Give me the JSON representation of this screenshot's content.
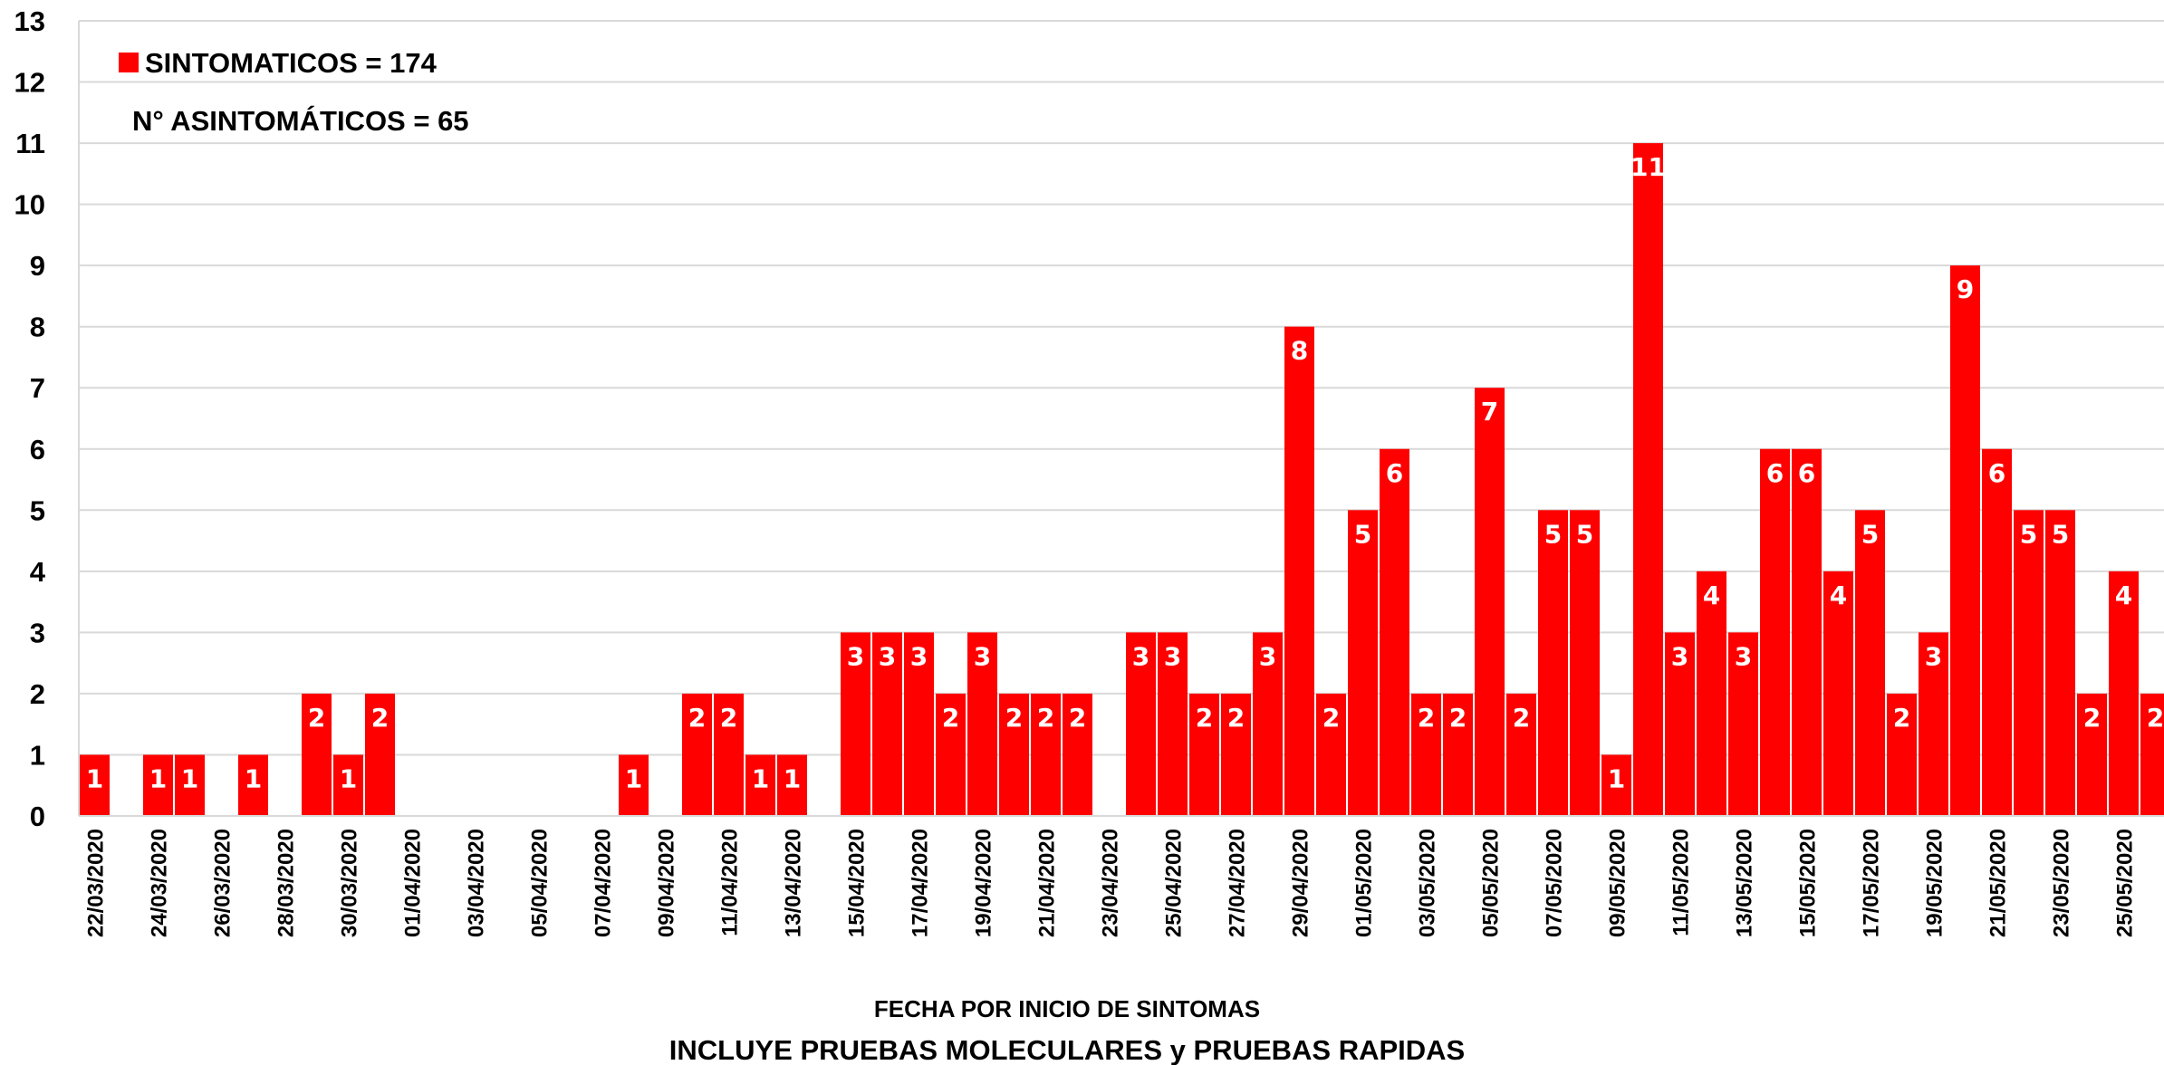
{
  "chart_data": {
    "type": "bar",
    "categories": [
      "22/03/2020",
      "23/03/2020",
      "24/03/2020",
      "25/03/2020",
      "26/03/2020",
      "27/03/2020",
      "28/03/2020",
      "29/03/2020",
      "30/03/2020",
      "31/03/2020",
      "01/04/2020",
      "02/04/2020",
      "03/04/2020",
      "04/04/2020",
      "05/04/2020",
      "06/04/2020",
      "07/04/2020",
      "08/04/2020",
      "09/04/2020",
      "10/04/2020",
      "11/04/2020",
      "12/04/2020",
      "13/04/2020",
      "14/04/2020",
      "15/04/2020",
      "16/04/2020",
      "17/04/2020",
      "18/04/2020",
      "19/04/2020",
      "20/04/2020",
      "21/04/2020",
      "22/04/2020",
      "23/04/2020",
      "24/04/2020",
      "25/04/2020",
      "26/04/2020",
      "27/04/2020",
      "28/04/2020",
      "29/04/2020",
      "30/04/2020",
      "01/05/2020",
      "02/05/2020",
      "03/05/2020",
      "04/05/2020",
      "05/05/2020",
      "06/05/2020",
      "07/05/2020",
      "08/05/2020",
      "09/05/2020",
      "10/05/2020",
      "11/05/2020",
      "12/05/2020",
      "13/05/2020",
      "14/05/2020",
      "15/05/2020",
      "16/05/2020",
      "17/05/2020",
      "18/05/2020",
      "19/05/2020",
      "20/05/2020",
      "21/05/2020",
      "22/05/2020",
      "23/05/2020",
      "24/05/2020",
      "25/05/2020",
      "26/05/2020"
    ],
    "tick_labels": [
      "22/03/2020",
      "24/03/2020",
      "26/03/2020",
      "28/03/2020",
      "30/03/2020",
      "01/04/2020",
      "03/04/2020",
      "05/04/2020",
      "07/04/2020",
      "09/04/2020",
      "11/04/2020",
      "13/04/2020",
      "15/04/2020",
      "17/04/2020",
      "19/04/2020",
      "21/04/2020",
      "23/04/2020",
      "25/04/2020",
      "27/04/2020",
      "29/04/2020",
      "01/05/2020",
      "03/05/2020",
      "05/05/2020",
      "07/05/2020",
      "09/05/2020",
      "11/05/2020",
      "13/05/2020",
      "15/05/2020",
      "17/05/2020",
      "19/05/2020",
      "21/05/2020",
      "23/05/2020",
      "25/05/2020"
    ],
    "series": [
      {
        "name": "SINTOMATICOS = 174",
        "color": "#ff0000",
        "values": [
          1,
          0,
          1,
          1,
          0,
          1,
          0,
          2,
          1,
          2,
          0,
          0,
          0,
          0,
          0,
          0,
          0,
          1,
          0,
          2,
          2,
          1,
          1,
          0,
          3,
          3,
          3,
          2,
          3,
          2,
          2,
          2,
          0,
          3,
          3,
          2,
          2,
          3,
          8,
          2,
          5,
          6,
          2,
          2,
          7,
          2,
          5,
          5,
          1,
          11,
          3,
          4,
          3,
          6,
          6,
          4,
          5,
          2,
          3,
          9,
          6,
          5,
          5,
          2,
          4,
          2
        ]
      }
    ],
    "ylim": [
      0,
      13
    ],
    "yticks": [
      "0",
      "1",
      "2",
      "3",
      "4",
      "5",
      "6",
      "7",
      "8",
      "9",
      "10",
      "11",
      "12",
      "13"
    ],
    "grid": true,
    "xlabel": "FECHA POR INICIO DE SINTOMAS",
    "ylabel": "",
    "legend": {
      "label": "SINTOMATICOS = 174",
      "position": "top-left"
    },
    "annotation": "N° ASINTOMÁTICOS = 65",
    "subtitle": "INCLUYE PRUEBAS MOLECULARES y PRUEBAS RAPIDAS",
    "colors": {
      "bar": "#ff0000",
      "grid": "#d9d9d9",
      "bar_label": "#ffffff"
    }
  }
}
